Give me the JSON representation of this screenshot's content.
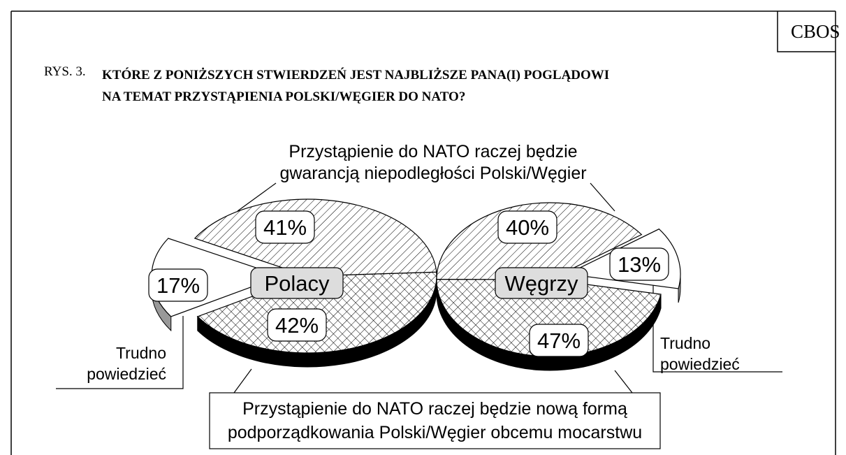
{
  "source": "CBOS",
  "figure_label": "RYS. 3.",
  "title": "KTÓRE Z PONIŻSZYCH STWIERDZEŃ JEST NAJBLIŻSZE PANA(I) POGLĄDOWI\nNA TEMAT PRZYSTĄPIENIA POLSKI/WĘGIER DO NATO?",
  "callouts": {
    "positive": "Przystąpienie do NATO raczej będzie\ngwarancją niepodległości Polski/Węgier",
    "negative": "Przystąpienie do NATO raczej będzie nową formą\npodporządkowania Polski/Węgier obcemu mocarstwu"
  },
  "chart_data": [
    {
      "type": "pie",
      "title": "Polacy",
      "categories": [
        null,
        null,
        "Trudno\npowiedzieć"
      ],
      "values": [
        41,
        42,
        17
      ],
      "value_labels": [
        "41%",
        "42%",
        "17%"
      ],
      "patterns": [
        "diagonal",
        "crosshatch",
        "none"
      ],
      "side_colors": [
        "#000000",
        "#000000",
        "#999999"
      ]
    },
    {
      "type": "pie",
      "title": "Węgrzy",
      "categories": [
        null,
        null,
        "Trudno\npowiedzieć"
      ],
      "values": [
        40,
        47,
        13
      ],
      "value_labels": [
        "40%",
        "47%",
        "13%"
      ],
      "patterns": [
        "diagonal",
        "crosshatch",
        "none"
      ],
      "side_colors": [
        "#000000",
        "#000000",
        "#999999"
      ]
    }
  ]
}
